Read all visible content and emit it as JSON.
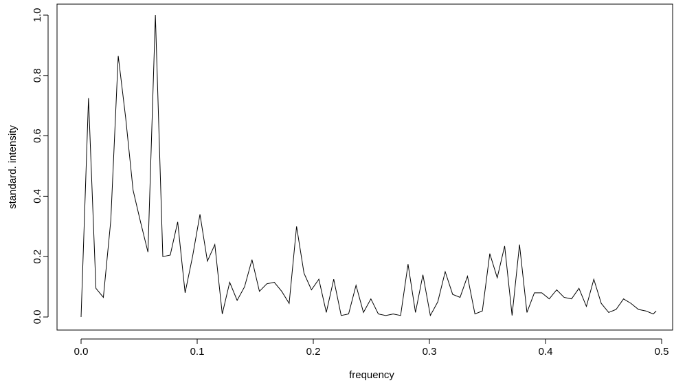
{
  "chart_data": {
    "type": "line",
    "title": "",
    "xlabel": "frequency",
    "ylabel": "standard. intensity",
    "xlim": [
      0.0,
      0.5
    ],
    "ylim": [
      0.0,
      1.0
    ],
    "grid": false,
    "legend": "none",
    "line_color": "#000000",
    "x_ticks": [
      {
        "value": 0.0,
        "label": "0.0"
      },
      {
        "value": 0.1,
        "label": "0.1"
      },
      {
        "value": 0.2,
        "label": "0.2"
      },
      {
        "value": 0.3,
        "label": "0.3"
      },
      {
        "value": 0.4,
        "label": "0.4"
      },
      {
        "value": 0.5,
        "label": "0.5"
      }
    ],
    "y_ticks": [
      {
        "value": 0.0,
        "label": "0.0"
      },
      {
        "value": 0.2,
        "label": "0.2"
      },
      {
        "value": 0.4,
        "label": "0.4"
      },
      {
        "value": 0.6,
        "label": "0.6"
      },
      {
        "value": 0.8,
        "label": "0.8"
      },
      {
        "value": 1.0,
        "label": "1.0"
      }
    ],
    "series": [
      {
        "x": [
          0.0,
          0.0064,
          0.0128,
          0.0192,
          0.0256,
          0.032,
          0.0384,
          0.0448,
          0.0512,
          0.0576,
          0.064,
          0.0704,
          0.0768,
          0.0832,
          0.0896,
          0.096,
          0.1024,
          0.1088,
          0.1152,
          0.1216,
          0.128,
          0.1344,
          0.1408,
          0.1472,
          0.1536,
          0.16,
          0.1664,
          0.1728,
          0.1792,
          0.1856,
          0.192,
          0.1984,
          0.2048,
          0.2112,
          0.2176,
          0.224,
          0.2304,
          0.2368,
          0.2432,
          0.2496,
          0.256,
          0.2624,
          0.2688,
          0.2752,
          0.2816,
          0.288,
          0.2944,
          0.3008,
          0.3072,
          0.3136,
          0.32,
          0.3264,
          0.3328,
          0.3392,
          0.3456,
          0.352,
          0.3584,
          0.3648,
          0.3712,
          0.3776,
          0.384,
          0.3904,
          0.3968,
          0.4032,
          0.4096,
          0.416,
          0.4224,
          0.4288,
          0.4352,
          0.4416,
          0.448,
          0.4544,
          0.4608,
          0.4672,
          0.4736,
          0.48,
          0.4864,
          0.4928,
          0.4953
        ],
        "values": [
          0.0,
          0.725,
          0.095,
          0.065,
          0.32,
          0.865,
          0.66,
          0.42,
          0.315,
          0.215,
          1.0,
          0.2,
          0.205,
          0.315,
          0.08,
          0.2,
          0.34,
          0.185,
          0.24,
          0.01,
          0.115,
          0.055,
          0.1,
          0.19,
          0.085,
          0.11,
          0.115,
          0.085,
          0.045,
          0.3,
          0.145,
          0.09,
          0.125,
          0.015,
          0.125,
          0.005,
          0.01,
          0.105,
          0.015,
          0.06,
          0.01,
          0.005,
          0.01,
          0.005,
          0.175,
          0.015,
          0.14,
          0.005,
          0.05,
          0.15,
          0.075,
          0.065,
          0.135,
          0.01,
          0.02,
          0.21,
          0.13,
          0.235,
          0.005,
          0.24,
          0.015,
          0.08,
          0.08,
          0.06,
          0.09,
          0.065,
          0.06,
          0.095,
          0.035,
          0.125,
          0.045,
          0.015,
          0.025,
          0.06,
          0.045,
          0.025,
          0.02,
          0.01,
          0.02
        ]
      }
    ]
  }
}
